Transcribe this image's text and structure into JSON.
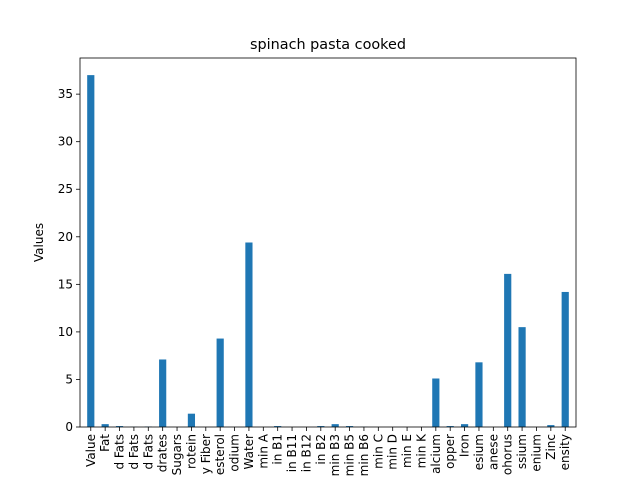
{
  "chart_data": {
    "type": "bar",
    "title": "spinach pasta cooked",
    "xlabel": "",
    "ylabel": "Values",
    "ylim": [
      0,
      38.8
    ],
    "yticks": [
      0,
      5,
      10,
      15,
      20,
      25,
      30,
      35
    ],
    "grid": false,
    "legend": "none",
    "bar_color": "#1f77b4",
    "categories": [
      "Value",
      "Fat",
      "d Fats",
      "d Fats",
      "d Fats",
      "drates",
      "Sugars",
      "rotein",
      "y Fiber",
      "esterol",
      "odium",
      "Water",
      "min A",
      "in B1",
      "in B11",
      "in B12",
      "in B2",
      "min B3",
      "min B5",
      "min B6",
      "min C",
      "min D",
      "min E",
      "min K",
      "alcium",
      "opper",
      "Iron",
      "esium",
      "anese",
      "ohorus",
      "ssium",
      "enium",
      "Zinc",
      "ensity"
    ],
    "values": [
      37.0,
      0.3,
      0.1,
      0.02,
      0.05,
      7.1,
      0.0,
      1.4,
      0.0,
      9.3,
      0.0,
      19.4,
      0.0,
      0.1,
      0.0,
      0.0,
      0.1,
      0.3,
      0.1,
      0.02,
      0.0,
      0.0,
      0.0,
      0.0,
      5.1,
      0.1,
      0.3,
      6.8,
      0.0,
      16.1,
      10.5,
      0.0,
      0.2,
      14.2
    ]
  }
}
